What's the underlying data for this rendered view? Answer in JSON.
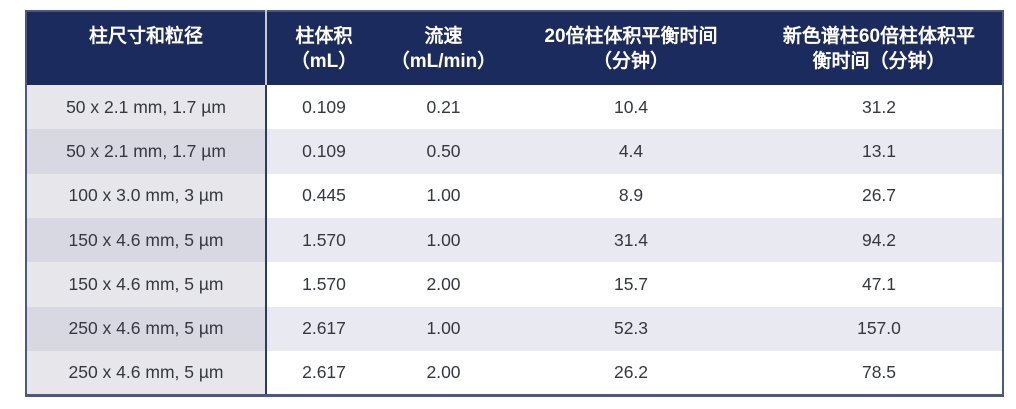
{
  "theme": {
    "header-bg": "#1c2b5e",
    "header-text": "#ffffff",
    "body-text": "#35383f",
    "row-odd-bg": "#ffffff",
    "row-even-bg": "#e9e9f2",
    "col1-odd-bg": "#e7e7eb",
    "col1-even-bg": "#d8d8e2",
    "outer-border": "#4e5878",
    "divider-header": "#c3c8d6",
    "divider-body": "#2d3966"
  },
  "table": {
    "headers": [
      "柱尺寸和粒径",
      "柱体积\n（mL）",
      "流速\n（mL/min）",
      "20倍柱体积平衡时间\n（分钟）",
      "新色谱柱60倍柱体积平\n衡时间（分钟）"
    ],
    "rows": [
      [
        "50 x 2.1 mm, 1.7 µm",
        "0.109",
        "0.21",
        "10.4",
        "31.2"
      ],
      [
        "50 x 2.1 mm, 1.7 µm",
        "0.109",
        "0.50",
        "4.4",
        "13.1"
      ],
      [
        "100 x 3.0 mm, 3 µm",
        "0.445",
        "1.00",
        "8.9",
        "26.7"
      ],
      [
        "150 x 4.6 mm, 5 µm",
        "1.570",
        "1.00",
        "31.4",
        "94.2"
      ],
      [
        "150 x 4.6 mm, 5 µm",
        "1.570",
        "2.00",
        "15.7",
        "47.1"
      ],
      [
        "250 x 4.6 mm, 5 µm",
        "2.617",
        "1.00",
        "52.3",
        "157.0"
      ],
      [
        "250 x 4.6 mm, 5 µm",
        "2.617",
        "2.00",
        "26.2",
        "78.5"
      ]
    ]
  }
}
